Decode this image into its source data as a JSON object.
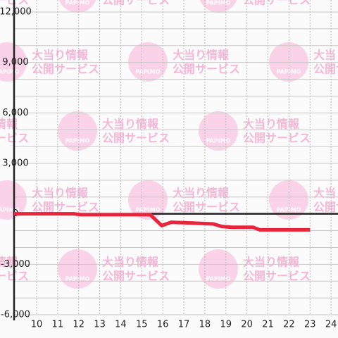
{
  "chart_data": {
    "type": "line",
    "watermark": {
      "line1": "大当り情報",
      "line2": "公開サービス",
      "logo": "PAPIMO"
    },
    "x": [
      8.93,
      11.8,
      12.1,
      15.4,
      15.95,
      16.4,
      17.4,
      18.4,
      18.8,
      19.3,
      20.3,
      20.6,
      23
    ],
    "series": [
      {
        "color": "#e8253a",
        "values": [
          0,
          0,
          -50,
          -50,
          -700,
          -500,
          -550,
          -600,
          -750,
          -800,
          -800,
          -950,
          -950
        ]
      }
    ],
    "xlim": [
      8.93,
      24.33
    ],
    "xticks": [
      10,
      11,
      12,
      13,
      14,
      15,
      16,
      17,
      18,
      19,
      20,
      21,
      22,
      23,
      24
    ],
    "ylim": [
      -6000,
      12000
    ],
    "yticks": [
      {
        "value": -6000,
        "label": "-6,000"
      },
      {
        "value": -3000,
        "label": "-3,000"
      },
      0,
      {
        "value": 3000,
        "label": "3,000"
      },
      {
        "value": 6000,
        "label": "6,000"
      },
      {
        "value": 9000,
        "label": "9,000"
      },
      {
        "value": 12000,
        "label": "12,000"
      }
    ],
    "ygrid": [
      -6000,
      -5000,
      -4000,
      -3000,
      -2000,
      -1000,
      1000,
      2000,
      3000,
      4000,
      5000,
      6000,
      7000,
      8000,
      9000,
      10000,
      11000,
      12000
    ],
    "grid": true
  }
}
